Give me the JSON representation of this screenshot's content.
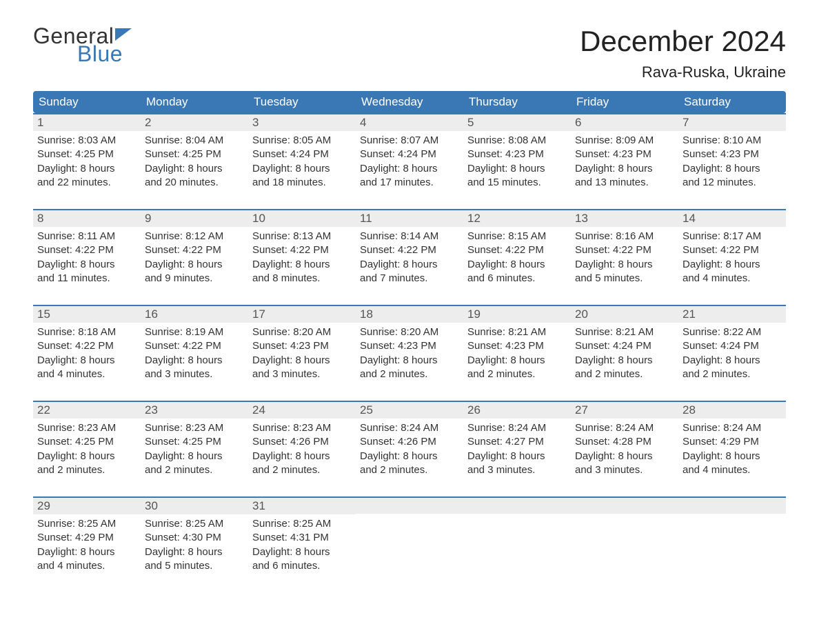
{
  "logo": {
    "text_general": "General",
    "text_blue": "Blue",
    "flag_color": "#3a78b5"
  },
  "header": {
    "month_title": "December 2024",
    "location": "Rava-Ruska, Ukraine"
  },
  "colors": {
    "header_bg": "#3a78b5",
    "header_text": "#ffffff",
    "daynum_bg": "#ededed",
    "daynum_border": "#3a78b5",
    "body_text": "#333333",
    "page_bg": "#ffffff"
  },
  "typography": {
    "month_title_fontsize": 42,
    "location_fontsize": 22,
    "day_header_fontsize": 17,
    "daynum_fontsize": 17,
    "body_fontsize": 15
  },
  "day_headers": [
    "Sunday",
    "Monday",
    "Tuesday",
    "Wednesday",
    "Thursday",
    "Friday",
    "Saturday"
  ],
  "weeks": [
    [
      {
        "n": "1",
        "sr": "Sunrise: 8:03 AM",
        "ss": "Sunset: 4:25 PM",
        "d1": "Daylight: 8 hours",
        "d2": "and 22 minutes."
      },
      {
        "n": "2",
        "sr": "Sunrise: 8:04 AM",
        "ss": "Sunset: 4:25 PM",
        "d1": "Daylight: 8 hours",
        "d2": "and 20 minutes."
      },
      {
        "n": "3",
        "sr": "Sunrise: 8:05 AM",
        "ss": "Sunset: 4:24 PM",
        "d1": "Daylight: 8 hours",
        "d2": "and 18 minutes."
      },
      {
        "n": "4",
        "sr": "Sunrise: 8:07 AM",
        "ss": "Sunset: 4:24 PM",
        "d1": "Daylight: 8 hours",
        "d2": "and 17 minutes."
      },
      {
        "n": "5",
        "sr": "Sunrise: 8:08 AM",
        "ss": "Sunset: 4:23 PM",
        "d1": "Daylight: 8 hours",
        "d2": "and 15 minutes."
      },
      {
        "n": "6",
        "sr": "Sunrise: 8:09 AM",
        "ss": "Sunset: 4:23 PM",
        "d1": "Daylight: 8 hours",
        "d2": "and 13 minutes."
      },
      {
        "n": "7",
        "sr": "Sunrise: 8:10 AM",
        "ss": "Sunset: 4:23 PM",
        "d1": "Daylight: 8 hours",
        "d2": "and 12 minutes."
      }
    ],
    [
      {
        "n": "8",
        "sr": "Sunrise: 8:11 AM",
        "ss": "Sunset: 4:22 PM",
        "d1": "Daylight: 8 hours",
        "d2": "and 11 minutes."
      },
      {
        "n": "9",
        "sr": "Sunrise: 8:12 AM",
        "ss": "Sunset: 4:22 PM",
        "d1": "Daylight: 8 hours",
        "d2": "and 9 minutes."
      },
      {
        "n": "10",
        "sr": "Sunrise: 8:13 AM",
        "ss": "Sunset: 4:22 PM",
        "d1": "Daylight: 8 hours",
        "d2": "and 8 minutes."
      },
      {
        "n": "11",
        "sr": "Sunrise: 8:14 AM",
        "ss": "Sunset: 4:22 PM",
        "d1": "Daylight: 8 hours",
        "d2": "and 7 minutes."
      },
      {
        "n": "12",
        "sr": "Sunrise: 8:15 AM",
        "ss": "Sunset: 4:22 PM",
        "d1": "Daylight: 8 hours",
        "d2": "and 6 minutes."
      },
      {
        "n": "13",
        "sr": "Sunrise: 8:16 AM",
        "ss": "Sunset: 4:22 PM",
        "d1": "Daylight: 8 hours",
        "d2": "and 5 minutes."
      },
      {
        "n": "14",
        "sr": "Sunrise: 8:17 AM",
        "ss": "Sunset: 4:22 PM",
        "d1": "Daylight: 8 hours",
        "d2": "and 4 minutes."
      }
    ],
    [
      {
        "n": "15",
        "sr": "Sunrise: 8:18 AM",
        "ss": "Sunset: 4:22 PM",
        "d1": "Daylight: 8 hours",
        "d2": "and 4 minutes."
      },
      {
        "n": "16",
        "sr": "Sunrise: 8:19 AM",
        "ss": "Sunset: 4:22 PM",
        "d1": "Daylight: 8 hours",
        "d2": "and 3 minutes."
      },
      {
        "n": "17",
        "sr": "Sunrise: 8:20 AM",
        "ss": "Sunset: 4:23 PM",
        "d1": "Daylight: 8 hours",
        "d2": "and 3 minutes."
      },
      {
        "n": "18",
        "sr": "Sunrise: 8:20 AM",
        "ss": "Sunset: 4:23 PM",
        "d1": "Daylight: 8 hours",
        "d2": "and 2 minutes."
      },
      {
        "n": "19",
        "sr": "Sunrise: 8:21 AM",
        "ss": "Sunset: 4:23 PM",
        "d1": "Daylight: 8 hours",
        "d2": "and 2 minutes."
      },
      {
        "n": "20",
        "sr": "Sunrise: 8:21 AM",
        "ss": "Sunset: 4:24 PM",
        "d1": "Daylight: 8 hours",
        "d2": "and 2 minutes."
      },
      {
        "n": "21",
        "sr": "Sunrise: 8:22 AM",
        "ss": "Sunset: 4:24 PM",
        "d1": "Daylight: 8 hours",
        "d2": "and 2 minutes."
      }
    ],
    [
      {
        "n": "22",
        "sr": "Sunrise: 8:23 AM",
        "ss": "Sunset: 4:25 PM",
        "d1": "Daylight: 8 hours",
        "d2": "and 2 minutes."
      },
      {
        "n": "23",
        "sr": "Sunrise: 8:23 AM",
        "ss": "Sunset: 4:25 PM",
        "d1": "Daylight: 8 hours",
        "d2": "and 2 minutes."
      },
      {
        "n": "24",
        "sr": "Sunrise: 8:23 AM",
        "ss": "Sunset: 4:26 PM",
        "d1": "Daylight: 8 hours",
        "d2": "and 2 minutes."
      },
      {
        "n": "25",
        "sr": "Sunrise: 8:24 AM",
        "ss": "Sunset: 4:26 PM",
        "d1": "Daylight: 8 hours",
        "d2": "and 2 minutes."
      },
      {
        "n": "26",
        "sr": "Sunrise: 8:24 AM",
        "ss": "Sunset: 4:27 PM",
        "d1": "Daylight: 8 hours",
        "d2": "and 3 minutes."
      },
      {
        "n": "27",
        "sr": "Sunrise: 8:24 AM",
        "ss": "Sunset: 4:28 PM",
        "d1": "Daylight: 8 hours",
        "d2": "and 3 minutes."
      },
      {
        "n": "28",
        "sr": "Sunrise: 8:24 AM",
        "ss": "Sunset: 4:29 PM",
        "d1": "Daylight: 8 hours",
        "d2": "and 4 minutes."
      }
    ],
    [
      {
        "n": "29",
        "sr": "Sunrise: 8:25 AM",
        "ss": "Sunset: 4:29 PM",
        "d1": "Daylight: 8 hours",
        "d2": "and 4 minutes."
      },
      {
        "n": "30",
        "sr": "Sunrise: 8:25 AM",
        "ss": "Sunset: 4:30 PM",
        "d1": "Daylight: 8 hours",
        "d2": "and 5 minutes."
      },
      {
        "n": "31",
        "sr": "Sunrise: 8:25 AM",
        "ss": "Sunset: 4:31 PM",
        "d1": "Daylight: 8 hours",
        "d2": "and 6 minutes."
      },
      null,
      null,
      null,
      null
    ]
  ]
}
